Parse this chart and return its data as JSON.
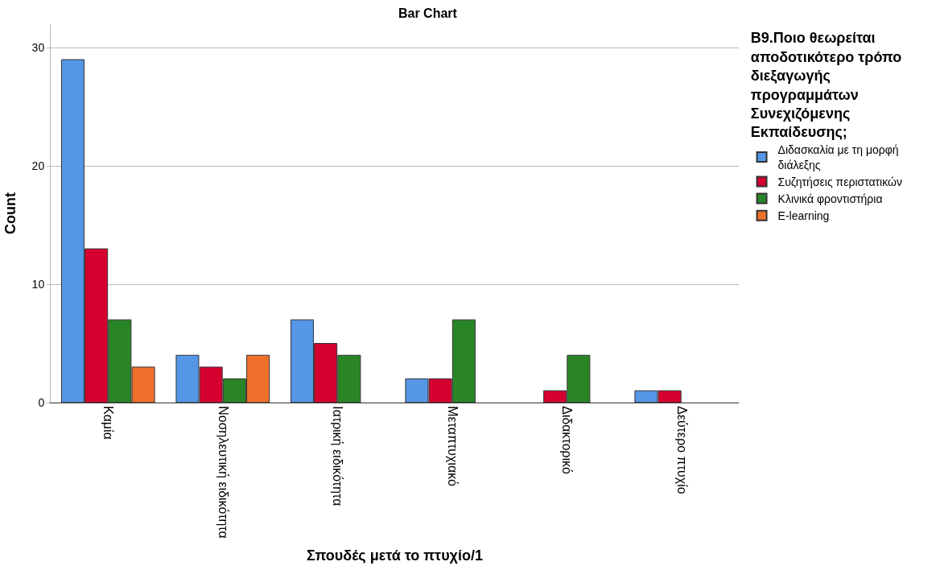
{
  "chart_data": {
    "type": "bar",
    "title": "Bar Chart",
    "xlabel": "Σπουδές μετά το πτυχίο/1",
    "ylabel": "Count",
    "legend_title": "B9.Ποιο θεωρείται αποδοτικότερο τρόπο διεξαγωγής προγραμμάτων Συνεχιζόμενης Εκπαίδευσης;",
    "categories": [
      "Καμία",
      "Νοσηλευτική ειδικότητα",
      "Ιατρική ειδικότητα",
      "Μεταπτυχιακό",
      "Διδακτορικό",
      "Δεύτερο πτυχίο"
    ],
    "series": [
      {
        "name": "Διδασκαλία με τη μορφή διάλεξης",
        "color": "#5596e6",
        "values": [
          29,
          4,
          7,
          2,
          null,
          1
        ]
      },
      {
        "name": "Συζητήσεις περιστατικών",
        "color": "#d6002f",
        "values": [
          13,
          3,
          5,
          2,
          1,
          1
        ]
      },
      {
        "name": "Κλινικά φροντιστήρια",
        "color": "#2a8526",
        "values": [
          7,
          2,
          4,
          7,
          4,
          null
        ]
      },
      {
        "name": "E-learning",
        "color": "#f0712b",
        "values": [
          3,
          4,
          null,
          null,
          null,
          null
        ]
      }
    ],
    "ylim": [
      0,
      32
    ],
    "yticks": [
      0,
      10,
      20,
      30
    ],
    "grid": "y",
    "legend": "top right"
  }
}
